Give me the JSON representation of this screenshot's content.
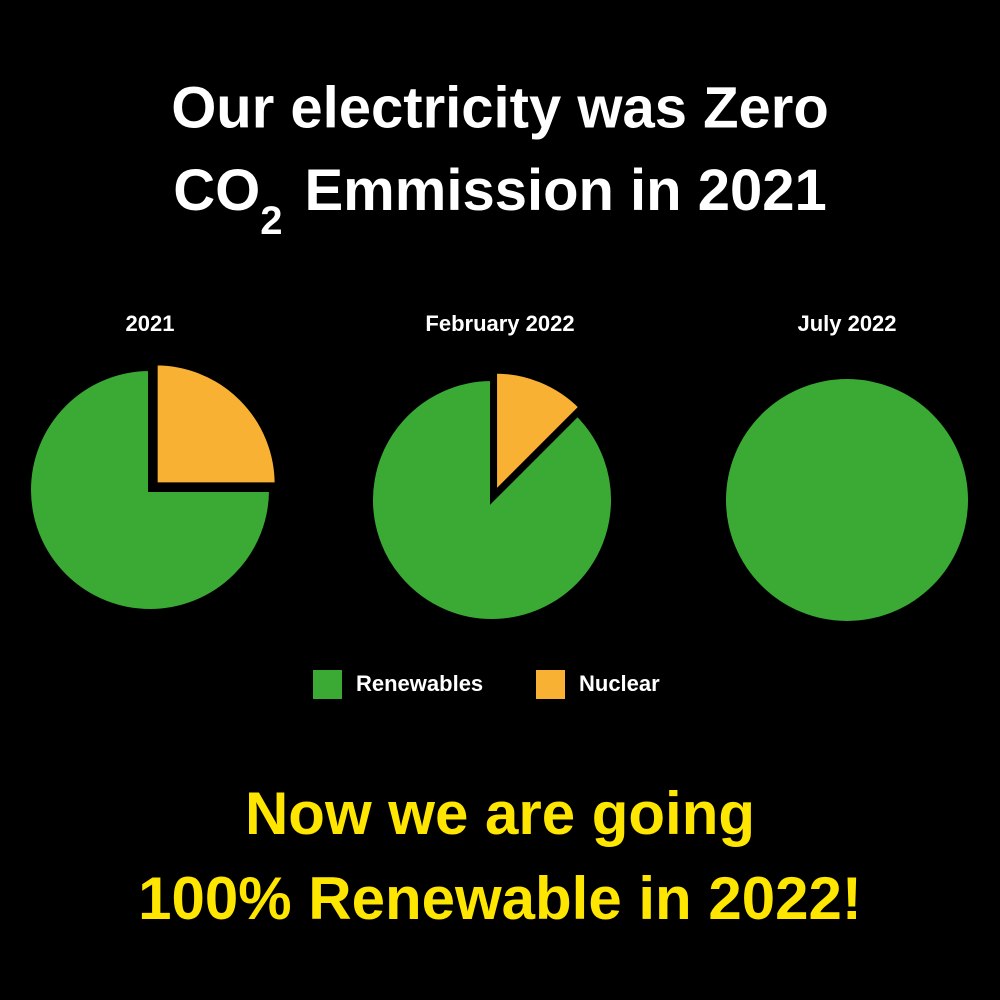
{
  "title": {
    "line1": "Our electricity was Zero",
    "line2_start": "CO",
    "line2_subscript": "2",
    "line2_end": "Emmission in 2021"
  },
  "footer": {
    "line1": "Now we are going",
    "line2": "100% Renewable in 2022!"
  },
  "chart_data": [
    {
      "type": "pie",
      "title": "2021",
      "categories": [
        "Renewables",
        "Nuclear"
      ],
      "values": [
        75,
        25
      ],
      "colors": [
        "#3aaa35",
        "#f8b133"
      ]
    },
    {
      "type": "pie",
      "title": "February 2022",
      "categories": [
        "Renewables",
        "Nuclear"
      ],
      "values": [
        87.5,
        12.5
      ],
      "colors": [
        "#3aaa35",
        "#f8b133"
      ]
    },
    {
      "type": "pie",
      "title": "July 2022",
      "categories": [
        "Renewables",
        "Nuclear"
      ],
      "values": [
        100,
        0
      ],
      "colors": [
        "#3aaa35",
        "#f8b133"
      ]
    }
  ]
}
